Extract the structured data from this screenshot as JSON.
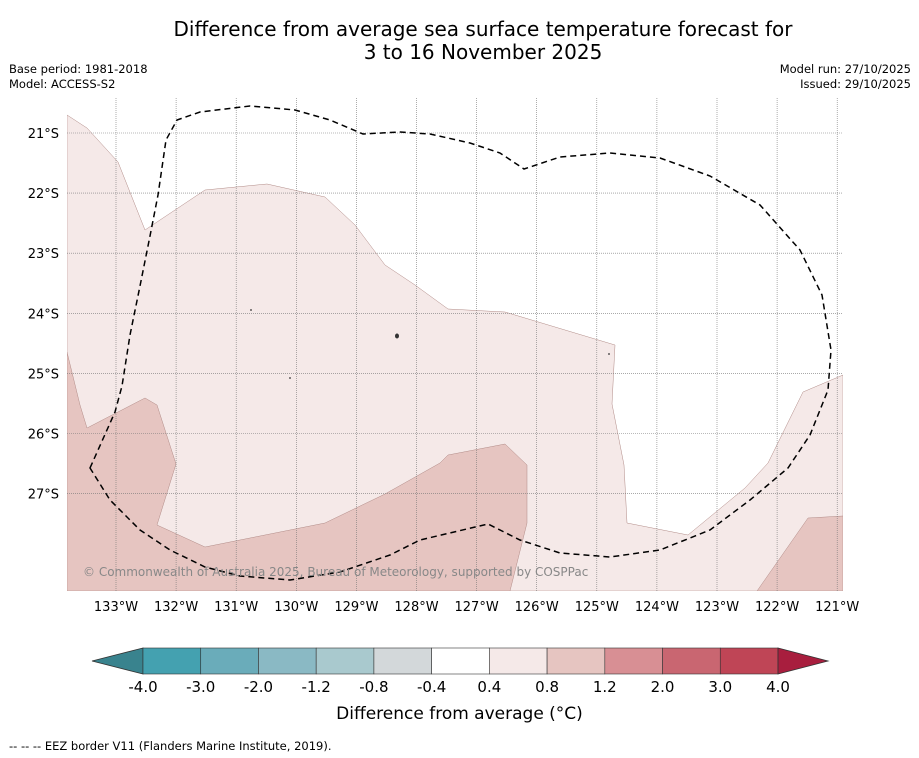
{
  "title": {
    "line1": "Difference from average sea surface temperature forecast for",
    "line2": "3 to 16 November 2025"
  },
  "meta": {
    "base_period": "Base period: 1981-2018",
    "model": "Model: ACCESS-S2",
    "model_run": "Model run: 27/10/2025",
    "issued": "Issued: 29/10/2025"
  },
  "map": {
    "lat_labels": [
      "21°S",
      "22°S",
      "23°S",
      "24°S",
      "25°S",
      "26°S",
      "27°S"
    ],
    "lon_labels": [
      "133°W",
      "132°W",
      "131°W",
      "130°W",
      "129°W",
      "128°W",
      "127°W",
      "126°W",
      "125°W",
      "124°W",
      "123°W",
      "122°W",
      "121°W"
    ],
    "copyright": "© Commonwealth of Australia 2025, Bureau of Meteorology, supported by COSPPac",
    "colors": {
      "light_pink": "#f5e9e8",
      "mid_pink": "#e6c5c1",
      "contour": "#b08a86",
      "eez": "#000000"
    }
  },
  "colorbar": {
    "ticks": [
      "-4.0",
      "-3.0",
      "-2.0",
      "-1.2",
      "-0.8",
      "-0.4",
      "0.4",
      "0.8",
      "1.2",
      "2.0",
      "3.0",
      "4.0"
    ],
    "colors": [
      "#44a1b0",
      "#6aacba",
      "#8ab9c4",
      "#a9c9ce",
      "#d3d8da",
      "#ffffff",
      "#f5e9e8",
      "#e6c5c1",
      "#d88f94",
      "#c96671",
      "#bf4556"
    ],
    "low_extend_color": "#39838e",
    "high_extend_color": "#a81e3e",
    "label": "Difference from average (°C)"
  },
  "footnote": "--  --  -- EEZ border V11 (Flanders Marine Institute, 2019)."
}
